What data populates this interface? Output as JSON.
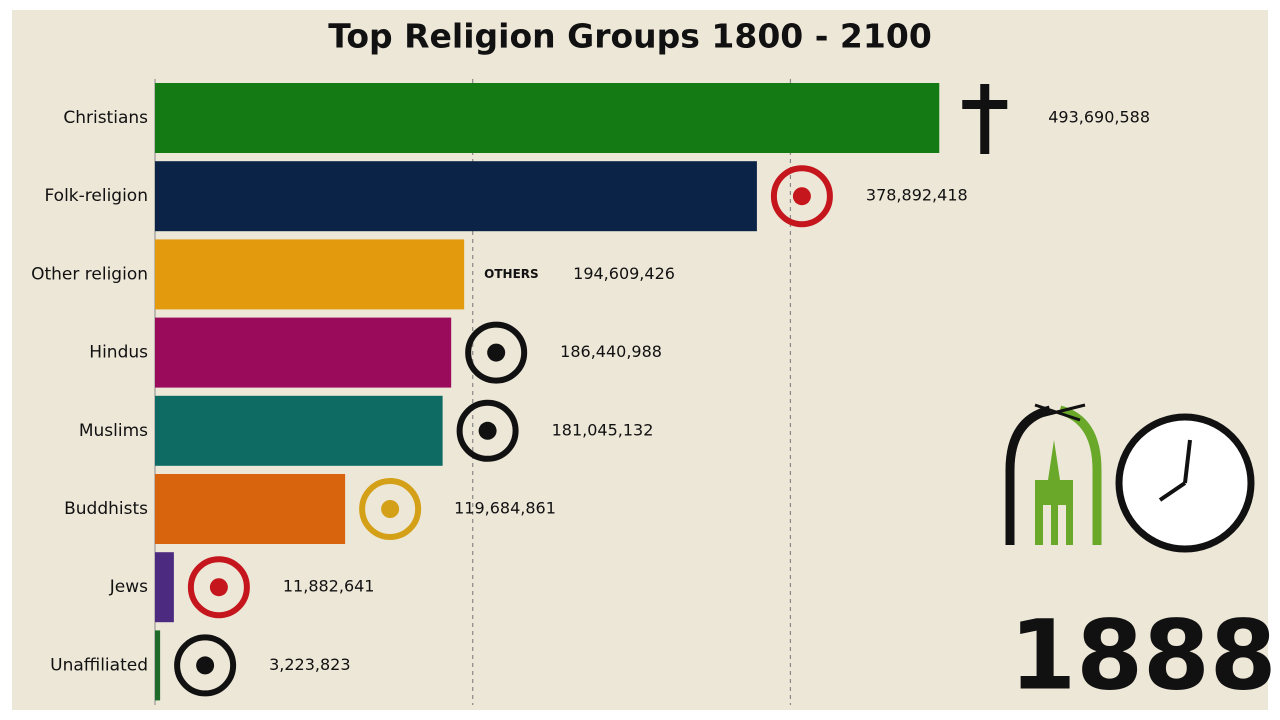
{
  "chart_data": {
    "type": "bar",
    "orientation": "horizontal",
    "title": "Top Religion Groups 1800 - 2100",
    "categories": [
      "Christians",
      "Folk-religion",
      "Other religion",
      "Hindus",
      "Muslims",
      "Buddhists",
      "Jews",
      "Unaffiliated"
    ],
    "values": [
      493690588,
      378892418,
      194609426,
      186440988,
      181045132,
      119684861,
      11882641,
      3223823
    ],
    "value_labels": [
      "493,690,588",
      "378,892,418",
      "194,609,426",
      "186,440,988",
      "181,045,132",
      "119,684,861",
      "11,882,641",
      "3,223,823"
    ],
    "colors": [
      "#147a14",
      "#0a2346",
      "#e39a0c",
      "#9b0b5c",
      "#0d6b63",
      "#d8650e",
      "#4b2a80",
      "#1f6b2a"
    ],
    "icon_labels": [
      null,
      null,
      "OTHERS",
      null,
      null,
      null,
      null,
      null
    ],
    "xlim": [
      0,
      700000000
    ],
    "xticks": [
      200000000,
      400000000
    ],
    "grid": true,
    "tick_labels": false,
    "year": "1888"
  }
}
